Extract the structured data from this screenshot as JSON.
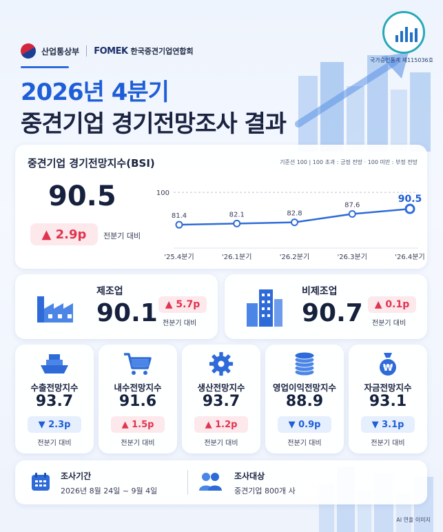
{
  "header": {
    "ministry": "산업통상부",
    "fomek": "FOMEK",
    "association": "한국중견기업연합회",
    "title_line1": "2026년 4분기",
    "title_line2": "중견기업 경기전망조사 결과",
    "stat_approval": "국가승인통계 제115036호"
  },
  "main": {
    "bsi_title": "중견기업 경기전망지수(BSI)",
    "legend_note": "기준선 100  |  100 초과 : 긍정 전망  ·  100 미만 : 부정 전망",
    "current_value": "90.5",
    "delta": "▲ 2.9p",
    "delta_note": "전분기 대비"
  },
  "chart_data": {
    "type": "line",
    "categories": [
      "'25.4분기",
      "'26.1분기",
      "'26.2분기",
      "'26.3분기",
      "'26.4분기"
    ],
    "values": [
      81.4,
      82.1,
      82.8,
      87.6,
      90.5
    ],
    "reference_line": 100,
    "reference_label": "100",
    "value_labels": [
      "81.4",
      "82.1",
      "82.8",
      "87.6",
      "90.5"
    ],
    "ylim": [
      72,
      102
    ],
    "colors": {
      "line": "#2e6bd8",
      "highlight": "#1e5ed6"
    }
  },
  "sectors": [
    {
      "name": "제조업",
      "value": "90.1",
      "delta": "▲ 5.7p",
      "note": "전분기 대비",
      "icon": "factory-icon"
    },
    {
      "name": "비제조업",
      "value": "90.7",
      "delta": "▲ 0.1p",
      "note": "전분기 대비",
      "icon": "building-icon"
    }
  ],
  "indices": [
    {
      "name": "수출전망지수",
      "value": "93.7",
      "delta": "▼ 2.3p",
      "direction": "down",
      "note": "전분기 대비",
      "icon": "ship-icon"
    },
    {
      "name": "내수전망지수",
      "value": "91.6",
      "delta": "▲ 1.5p",
      "direction": "up",
      "note": "전분기 대비",
      "icon": "cart-icon"
    },
    {
      "name": "생산전망지수",
      "value": "93.7",
      "delta": "▲ 1.2p",
      "direction": "up",
      "note": "전분기 대비",
      "icon": "gear-icon"
    },
    {
      "name": "영업이익전망지수",
      "value": "88.9",
      "delta": "▼ 0.9p",
      "direction": "down",
      "note": "전분기 대비",
      "icon": "coins-icon"
    },
    {
      "name": "자금전망지수",
      "value": "93.1",
      "delta": "▼ 3.1p",
      "direction": "down",
      "note": "전분기 대비",
      "icon": "money-bag-icon"
    }
  ],
  "footer": {
    "period_label": "조사기간",
    "period_value": "2026년 8월 24일 ~ 9월 4일",
    "target_label": "조사대상",
    "target_value": "중견기업 800개 사",
    "ai_note": "AI 연출 이미지"
  },
  "colors": {
    "accent": "#1e5ed6",
    "up": "#e0344f",
    "down": "#1e5ed6"
  }
}
